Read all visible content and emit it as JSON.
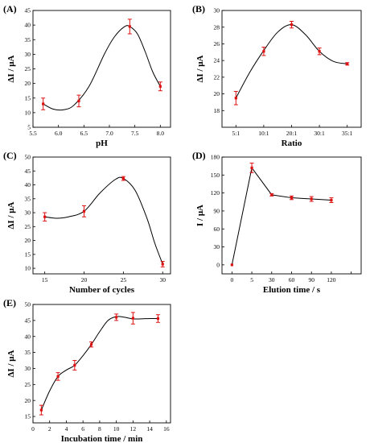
{
  "colors": {
    "marker": "#dd1111",
    "curve": "#000000"
  },
  "chart_data": [
    {
      "panel": "(A)",
      "type": "line",
      "xlabel": "pH",
      "ylabel": "ΔI / μA",
      "xlim": [
        5.5,
        8.2
      ],
      "ylim": [
        5,
        45
      ],
      "xticks": [
        5.5,
        6.0,
        6.5,
        7.0,
        7.5,
        8.0
      ],
      "xtick_labels": [
        "5.5",
        "6.0",
        "6.5",
        "7.0",
        "7.5",
        "8.0"
      ],
      "yticks": [
        5,
        10,
        15,
        20,
        25,
        30,
        35,
        40,
        45
      ],
      "ytick_labels": [
        "5",
        "10",
        "15",
        "20",
        "25",
        "30",
        "35",
        "40",
        "45"
      ],
      "x": [
        5.7,
        6.4,
        7.4,
        8.0
      ],
      "y": [
        13,
        14,
        39.5,
        19
      ],
      "err": [
        2,
        2,
        2.5,
        1.5
      ],
      "curve_x": [
        5.7,
        5.9,
        6.1,
        6.3,
        6.6,
        6.9,
        7.1,
        7.3,
        7.4,
        7.55,
        7.7,
        7.85,
        8.0
      ],
      "curve_y": [
        13,
        11.2,
        11,
        12.5,
        19,
        30,
        36,
        39.5,
        39.5,
        37,
        31,
        24,
        19
      ]
    },
    {
      "panel": "(B)",
      "type": "line",
      "xlabel": "Ratio",
      "ylabel": "ΔI / μA",
      "xlim": [
        0.5,
        5.5
      ],
      "ylim": [
        16,
        30
      ],
      "xticks": [
        1,
        2,
        3,
        4,
        5
      ],
      "xtick_labels": [
        "5:1",
        "10:1",
        "20:1",
        "30:1",
        "35:1"
      ],
      "yticks": [
        18,
        20,
        22,
        24,
        26,
        28,
        30
      ],
      "ytick_labels": [
        "18",
        "20",
        "22",
        "24",
        "26",
        "28",
        "30"
      ],
      "x": [
        1,
        2,
        3,
        4,
        5
      ],
      "y": [
        19.5,
        25.1,
        28.3,
        25.1,
        23.6
      ],
      "err": [
        0.8,
        0.5,
        0.4,
        0.4,
        0.15
      ],
      "curve_x": [
        1,
        1.5,
        2,
        2.5,
        3,
        3.5,
        4,
        4.5,
        5
      ],
      "curve_y": [
        19.5,
        22.6,
        25.2,
        27.4,
        28.3,
        27.1,
        25.1,
        23.9,
        23.6
      ]
    },
    {
      "panel": "(C)",
      "type": "line",
      "xlabel": "Number of cycles",
      "ylabel": "ΔI / μA",
      "xlim": [
        13.5,
        31
      ],
      "ylim": [
        8,
        50
      ],
      "xticks": [
        15,
        20,
        25,
        30
      ],
      "xtick_labels": [
        "15",
        "20",
        "25",
        "30"
      ],
      "yticks": [
        10,
        15,
        20,
        25,
        30,
        35,
        40,
        45,
        50
      ],
      "ytick_labels": [
        "10",
        "15",
        "20",
        "25",
        "30",
        "35",
        "40",
        "45",
        "50"
      ],
      "x": [
        15,
        20,
        25,
        30
      ],
      "y": [
        28.5,
        30.5,
        42.3,
        11.5
      ],
      "err": [
        1.5,
        2,
        0.7,
        1
      ],
      "curve_x": [
        15,
        16.5,
        18,
        20,
        22,
        24,
        25,
        26.5,
        28,
        29,
        30
      ],
      "curve_y": [
        28.5,
        28,
        28.5,
        30.5,
        37,
        42,
        42.3,
        38,
        28,
        19,
        11.5
      ]
    },
    {
      "panel": "(D)",
      "type": "line",
      "xlabel": "Elution time / s",
      "ylabel": "I / μA",
      "xlim": [
        0.5,
        7.5
      ],
      "ylim": [
        -15,
        180
      ],
      "xticks": [
        1,
        2,
        3,
        4,
        5,
        6,
        7
      ],
      "xtick_labels": [
        "0",
        "5",
        "30",
        "60",
        "90",
        "120",
        ""
      ],
      "yticks": [
        0,
        30,
        60,
        90,
        120,
        150,
        180
      ],
      "ytick_labels": [
        "0",
        "30",
        "60",
        "90",
        "120",
        "150",
        "180"
      ],
      "x": [
        1,
        2,
        3,
        4,
        5,
        6
      ],
      "y": [
        0,
        162,
        117,
        112,
        110,
        108
      ],
      "err": [
        0,
        8,
        2,
        3,
        4,
        4
      ],
      "curve_x": [
        1,
        2,
        3,
        4,
        5,
        6
      ],
      "curve_y": [
        0,
        162,
        117,
        112,
        110,
        108
      ],
      "straight": true
    },
    {
      "panel": "(E)",
      "type": "line",
      "xlabel": "Incubation time / min",
      "ylabel": "ΔI / μA",
      "xlim": [
        0,
        16.5
      ],
      "ylim": [
        13,
        50
      ],
      "xticks": [
        0,
        2,
        4,
        6,
        8,
        10,
        12,
        14,
        16
      ],
      "xtick_labels": [
        "0",
        "2",
        "4",
        "6",
        "8",
        "10",
        "12",
        "14",
        "16"
      ],
      "yticks": [
        15,
        20,
        25,
        30,
        35,
        40,
        45,
        50
      ],
      "ytick_labels": [
        "15",
        "20",
        "25",
        "30",
        "35",
        "40",
        "45",
        "50"
      ],
      "x": [
        1,
        3,
        5,
        7,
        10,
        12,
        15
      ],
      "y": [
        17,
        27.5,
        31,
        37.5,
        46,
        45.7,
        45.6
      ],
      "err": [
        1.5,
        1.2,
        1.5,
        0.8,
        1,
        1.8,
        1.2
      ],
      "curve_x": [
        1,
        2,
        3,
        4,
        5,
        6,
        7,
        8,
        9,
        10,
        11,
        12,
        13,
        14,
        15
      ],
      "curve_y": [
        17,
        23,
        27.5,
        29.5,
        31,
        34,
        37.5,
        41.5,
        45,
        46.2,
        46,
        45.5,
        45.5,
        45.6,
        45.6
      ]
    }
  ]
}
